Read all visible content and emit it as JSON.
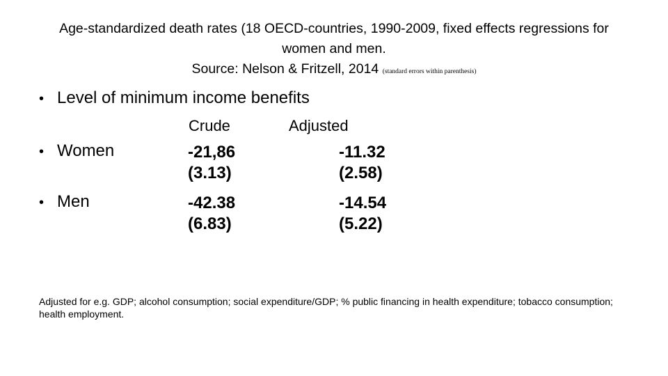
{
  "title": {
    "line1": "Age-standardized death rates (18 OECD-countries,  1990-2009, fixed effects regressions for",
    "line2": "women and men.",
    "line3": "Source: Nelson & Fritzell, 2014",
    "line3_small": "(standard errors within parenthesis)"
  },
  "bullets": {
    "main": "Level of minimum income benefits",
    "women": "Women",
    "men": "Men",
    "symbol": "•"
  },
  "table": {
    "headers": {
      "crude": "Crude",
      "adjusted": "Adjusted"
    },
    "women": {
      "crude": "-21,86",
      "crude_se": "(3.13)",
      "adjusted": "-11.32",
      "adjusted_se": "(2.58)"
    },
    "men": {
      "crude": "-42.38",
      "crude_se": "(6.83)",
      "adjusted": "-14.54",
      "adjusted_se": "(5.22)"
    }
  },
  "footnote": "Adjusted for e.g. GDP; alcohol consumption; social expenditure/GDP; % public financing in health expenditure;  tobacco consumption; health employment."
}
